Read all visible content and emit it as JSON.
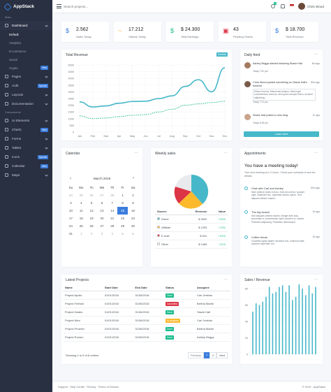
{
  "brand": "AppStack",
  "sidebar": {
    "sec_main": "Main",
    "dashboard": "Dashboard",
    "subs": [
      {
        "label": "Default",
        "badge": ""
      },
      {
        "label": "Analytics",
        "badge": ""
      },
      {
        "label": "E-commerce",
        "badge": ""
      },
      {
        "label": "Social",
        "badge": ""
      },
      {
        "label": "Crypto",
        "badge": "New"
      }
    ],
    "items1": [
      {
        "label": "Pages",
        "badge": ""
      },
      {
        "label": "Auth",
        "badge": "Special"
      },
      {
        "label": "Layouts",
        "badge": ""
      },
      {
        "label": "Documentation",
        "badge": ""
      }
    ],
    "sec_comp": "Components",
    "items2": [
      {
        "label": "UI Elements",
        "badge": ""
      },
      {
        "label": "Charts",
        "badge": "New"
      },
      {
        "label": "Forms",
        "badge": ""
      },
      {
        "label": "Tables",
        "badge": ""
      },
      {
        "label": "Icons",
        "badge": "Special"
      },
      {
        "label": "Calendar",
        "badge": "New"
      },
      {
        "label": "Maps",
        "badge": ""
      }
    ]
  },
  "topbar": {
    "search_placeholder": "Search projects...",
    "user": "Chris Wood",
    "notif_count": "4"
  },
  "stats": [
    {
      "icon": "$",
      "value": "2.562",
      "label": "Sales Today",
      "color": "#3b7ddd"
    },
    {
      "icon": "~",
      "value": "17.212",
      "label": "Visitors Today",
      "color": "#fcb92c"
    },
    {
      "icon": "$",
      "value": "$ 24.300",
      "label": "Total Earnings",
      "color": "#1cbb8c"
    },
    {
      "icon": "▣",
      "value": "43",
      "label": "Pending Orders",
      "color": "#dc3545"
    },
    {
      "icon": "$",
      "value": "$ 18.700",
      "label": "Total Revenue",
      "color": "#3b7ddd"
    }
  ],
  "revenue": {
    "title": "Total Revenue",
    "badge": "Monthly"
  },
  "chart_data": {
    "type": "line",
    "categories": [
      "Jan",
      "Feb",
      "Mar",
      "Apr",
      "May",
      "Jun",
      "Jul",
      "Aug",
      "Sep",
      "Oct",
      "Nov",
      "Dec"
    ],
    "series": [
      {
        "values": [
          2250,
          1870,
          1950,
          2150,
          2280,
          2300,
          2500,
          2700,
          3400,
          3900,
          3000,
          4800
        ]
      },
      {
        "values": [
          1200,
          1000,
          1050,
          1150,
          1250,
          1300,
          1500,
          1700,
          2000,
          2100,
          2200,
          2300
        ]
      }
    ],
    "yticks": [
      "5000",
      "4500",
      "4000",
      "3500",
      "3000",
      "2500",
      "2000",
      "1500",
      "1000",
      "500",
      "0"
    ],
    "ylim": [
      0,
      5000
    ]
  },
  "feed": {
    "title": "Daily feed",
    "items": [
      {
        "ago": "5m ago",
        "text": "Ashley Briggs started following Stacie Hall",
        "time": "Today 7:51 pm"
      },
      {
        "ago": "30m ago",
        "text": "Chris Wood posted something on Stacie Hall's timeline",
        "quote": "Etiam rhoncus. Maecenas tempus, tellus eget condimentum rhoncus, sem quam semper libero, sit amet adipiscing...",
        "time": "Today 7:21 pm"
      },
      {
        "ago": "1h ago",
        "text": "Stacie Hall posted a new blog",
        "time": "Today 6:35 pm"
      }
    ],
    "load_more": "Load more"
  },
  "calendar": {
    "title": "Calendar",
    "month": "March 2019",
    "dow": [
      "Su",
      "Mo",
      "Tu",
      "We",
      "Th",
      "Fr",
      "Sa"
    ],
    "weeks": [
      [
        "24",
        "25",
        "26",
        "27",
        "28",
        "1",
        "2"
      ],
      [
        "3",
        "4",
        "5",
        "6",
        "7",
        "8",
        "9"
      ],
      [
        "10",
        "11",
        "12",
        "13",
        "14",
        "15",
        "16"
      ],
      [
        "17",
        "18",
        "19",
        "20",
        "21",
        "22",
        "23"
      ],
      [
        "24",
        "25",
        "26",
        "27",
        "28",
        "29",
        "30"
      ],
      [
        "31",
        "1",
        "2",
        "3",
        "4",
        "5",
        "6"
      ]
    ]
  },
  "weekly": {
    "title": "Weekly sales",
    "cols": [
      "Source",
      "Revenue",
      "Value"
    ],
    "rows": [
      {
        "name": "Direct",
        "rev": "$ 2602",
        "val": "+43%",
        "color": "#46b8c9"
      },
      {
        "name": "Affiliate",
        "rev": "$ 1253",
        "val": "+13%",
        "color": "#fcb92c"
      },
      {
        "name": "E-mail",
        "rev": "$ 541",
        "val": "+24%",
        "color": "#dc3545"
      },
      {
        "name": "Other",
        "rev": "$ 1465",
        "val": "+11%",
        "color": "#e8eaed"
      }
    ]
  },
  "appointments": {
    "title": "Appointments",
    "heading": "You have a meeting today!",
    "sub": "Your next meeting is in 2 hours. Check your schedule to see the details.",
    "items": [
      {
        "title": "Chat with Carl and Ashley",
        "text": "Nam pretium turpis et arcu. Duis arcu tortor, suscipit eget, imperdiet nec, imperdiet iaculis, ipsum. Sed aliquam ultrices mauris.",
        "ago": "30m ago"
      },
      {
        "title": "The big launch",
        "text": "Sed aliquam ultrices mauris. Integer ante arcu, accumsan a, consectetuer eget, posuere ut, mauris. Praesent adipiscing. Phasellus ullamcorper.",
        "ago": "2h ago"
      },
      {
        "title": "Coffee break",
        "text": "Curabitur ligula sapien, tincidunt non, euismod vitae, posuere imperdiet, leo.",
        "ago": "3h ago"
      }
    ]
  },
  "projects": {
    "title": "Latest Projects",
    "cols": [
      "Name",
      "Start Date",
      "End Date",
      "Status",
      "Assignee"
    ],
    "rows": [
      {
        "name": "Project Apollo",
        "start": "01/01/2018",
        "end": "31/06/2018",
        "status": "Done",
        "color": "#1cbb8c",
        "who": "Carl Jenkins"
      },
      {
        "name": "Project Fireball",
        "start": "01/01/2018",
        "end": "31/06/2018",
        "status": "Cancelled",
        "color": "#dc3545",
        "who": "Bertha Martin"
      },
      {
        "name": "Project Hades",
        "start": "01/01/2018",
        "end": "31/06/2018",
        "status": "Done",
        "color": "#1cbb8c",
        "who": "Stacie Hall"
      },
      {
        "name": "Project Nitro",
        "start": "01/01/2018",
        "end": "31/06/2018",
        "status": "In progress",
        "color": "#fcb92c",
        "who": "Carl Jenkins"
      },
      {
        "name": "Project Phoenix",
        "start": "01/01/2018",
        "end": "31/06/2018",
        "status": "Done",
        "color": "#1cbb8c",
        "who": "Bertha Martin"
      },
      {
        "name": "Project Romeo",
        "start": "01/01/2018",
        "end": "31/06/2018",
        "status": "Done",
        "color": "#1cbb8c",
        "who": "Ashley Briggs"
      }
    ],
    "footer": "Showing 1 to 6 of 8 entries",
    "prev": "Previous",
    "p1": "1",
    "p2": "2",
    "next": "Next"
  },
  "sales": {
    "title": "Sales / Revenue",
    "yticks": [
      "80",
      "60",
      "40",
      "20",
      "0"
    ],
    "values": [
      52,
      62,
      60,
      64,
      70,
      82,
      74,
      76,
      82,
      84,
      76,
      84,
      66,
      70,
      86,
      80,
      72,
      84,
      74,
      82
    ]
  },
  "footer": {
    "links": [
      "Support",
      "Help Center",
      "Privacy",
      "Terms of Service"
    ],
    "copy": "© 2019 - AppStack"
  }
}
